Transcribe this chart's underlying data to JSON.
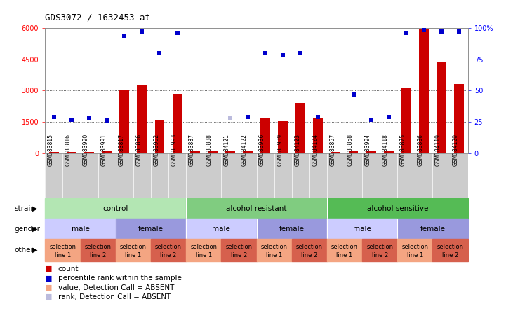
{
  "title": "GDS3072 / 1632453_at",
  "samples": [
    "GSM183815",
    "GSM183816",
    "GSM183990",
    "GSM183991",
    "GSM183817",
    "GSM183856",
    "GSM183992",
    "GSM183993",
    "GSM183887",
    "GSM183888",
    "GSM184121",
    "GSM184122",
    "GSM183936",
    "GSM183989",
    "GSM184123",
    "GSM184124",
    "GSM183857",
    "GSM183858",
    "GSM183994",
    "GSM184118",
    "GSM183875",
    "GSM183886",
    "GSM184119",
    "GSM184120"
  ],
  "counts": [
    80,
    70,
    80,
    100,
    3000,
    3250,
    1600,
    2850,
    100,
    120,
    100,
    100,
    1700,
    1550,
    2400,
    1700,
    80,
    100,
    120,
    130,
    3100,
    5950,
    4400,
    3300
  ],
  "counts_absent": [
    false,
    false,
    false,
    false,
    false,
    false,
    false,
    false,
    false,
    false,
    false,
    false,
    false,
    false,
    false,
    false,
    false,
    false,
    false,
    false,
    false,
    false,
    false,
    false
  ],
  "rank_vals": [
    29,
    27,
    28,
    26,
    94,
    97,
    80,
    96,
    null,
    null,
    28,
    29,
    80,
    79,
    80,
    29,
    null,
    47,
    27,
    29,
    96,
    99,
    97,
    97
  ],
  "rank_absent_flags": [
    false,
    false,
    false,
    false,
    false,
    false,
    false,
    false,
    true,
    true,
    true,
    false,
    false,
    false,
    false,
    false,
    true,
    false,
    false,
    false,
    false,
    false,
    false,
    false
  ],
  "strain_groups": [
    {
      "label": "control",
      "start": 0,
      "end": 7,
      "color": "#b3e6b3"
    },
    {
      "label": "alcohol resistant",
      "start": 8,
      "end": 15,
      "color": "#80cc80"
    },
    {
      "label": "alcohol sensitive",
      "start": 16,
      "end": 23,
      "color": "#55bb55"
    }
  ],
  "gender_groups": [
    {
      "label": "male",
      "start": 0,
      "end": 3,
      "color": "#ccccff"
    },
    {
      "label": "female",
      "start": 4,
      "end": 7,
      "color": "#9999dd"
    },
    {
      "label": "male",
      "start": 8,
      "end": 11,
      "color": "#ccccff"
    },
    {
      "label": "female",
      "start": 12,
      "end": 15,
      "color": "#9999dd"
    },
    {
      "label": "male",
      "start": 16,
      "end": 19,
      "color": "#ccccff"
    },
    {
      "label": "female",
      "start": 20,
      "end": 23,
      "color": "#9999dd"
    }
  ],
  "other_groups": [
    {
      "label": "selection\nline 1",
      "start": 0,
      "end": 1,
      "color": "#f4a582"
    },
    {
      "label": "selection\nline 2",
      "start": 2,
      "end": 3,
      "color": "#d6604d"
    },
    {
      "label": "selection\nline 1",
      "start": 4,
      "end": 5,
      "color": "#f4a582"
    },
    {
      "label": "selection\nline 2",
      "start": 6,
      "end": 7,
      "color": "#d6604d"
    },
    {
      "label": "selection\nline 1",
      "start": 8,
      "end": 9,
      "color": "#f4a582"
    },
    {
      "label": "selection\nline 2",
      "start": 10,
      "end": 11,
      "color": "#d6604d"
    },
    {
      "label": "selection\nline 1",
      "start": 12,
      "end": 13,
      "color": "#f4a582"
    },
    {
      "label": "selection\nline 2",
      "start": 14,
      "end": 15,
      "color": "#d6604d"
    },
    {
      "label": "selection\nline 1",
      "start": 16,
      "end": 17,
      "color": "#f4a582"
    },
    {
      "label": "selection\nline 2",
      "start": 18,
      "end": 19,
      "color": "#d6604d"
    },
    {
      "label": "selection\nline 1",
      "start": 20,
      "end": 21,
      "color": "#f4a582"
    },
    {
      "label": "selection\nline 2",
      "start": 22,
      "end": 23,
      "color": "#d6604d"
    }
  ],
  "bar_color": "#cc0000",
  "bar_absent_color": "#f4a582",
  "dot_color": "#0000cc",
  "dot_absent_color": "#bbbbdd",
  "ylim_left": [
    0,
    6000
  ],
  "ylim_right": [
    0,
    100
  ],
  "yticks_left": [
    0,
    1500,
    3000,
    4500,
    6000
  ],
  "ytick_labels_left": [
    "0",
    "1500",
    "3000",
    "4500",
    "6000"
  ],
  "yticks_right": [
    0,
    25,
    50,
    75,
    100
  ],
  "ytick_labels_right": [
    "0",
    "25",
    "50",
    "75",
    "100%"
  ],
  "bar_width": 0.55,
  "chart_bg": "#ffffff",
  "xlabel_bg": "#cccccc"
}
